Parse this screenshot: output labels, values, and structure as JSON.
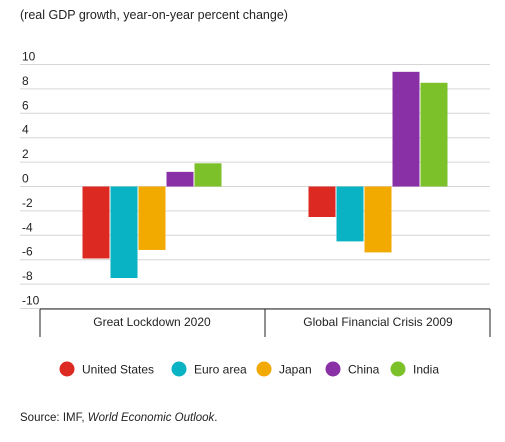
{
  "chart_data": {
    "type": "bar",
    "subtitle": "(real GDP growth, year-on-year percent change)",
    "categories": [
      "Great Lockdown 2020",
      "Global Financial Crisis 2009"
    ],
    "series": [
      {
        "name": "United States",
        "color": "#dc2a23",
        "values": [
          -5.9,
          -2.5
        ]
      },
      {
        "name": "Euro area",
        "color": "#0ab3c3",
        "values": [
          -7.5,
          -4.5
        ]
      },
      {
        "name": "Japan",
        "color": "#f2a900",
        "values": [
          -5.2,
          -5.4
        ]
      },
      {
        "name": "China",
        "color": "#8a30a6",
        "values": [
          1.2,
          9.4
        ]
      },
      {
        "name": "India",
        "color": "#7cc12a",
        "values": [
          1.9,
          8.5
        ]
      }
    ],
    "y_ticks": [
      10,
      8,
      6,
      4,
      2,
      0,
      -2,
      -4,
      -6,
      -8,
      -10
    ],
    "y_tick_labels": [
      "10",
      "8",
      "6",
      "4",
      "2",
      "0",
      "-2",
      "-4",
      "-6",
      "-8",
      "-10"
    ],
    "ylim": [
      -10.5,
      10.5
    ],
    "grid": true,
    "legend_placement": "bottom"
  },
  "source": {
    "prefix": "Source: IMF, ",
    "publication": "World Economic Outlook",
    "suffix": "."
  }
}
